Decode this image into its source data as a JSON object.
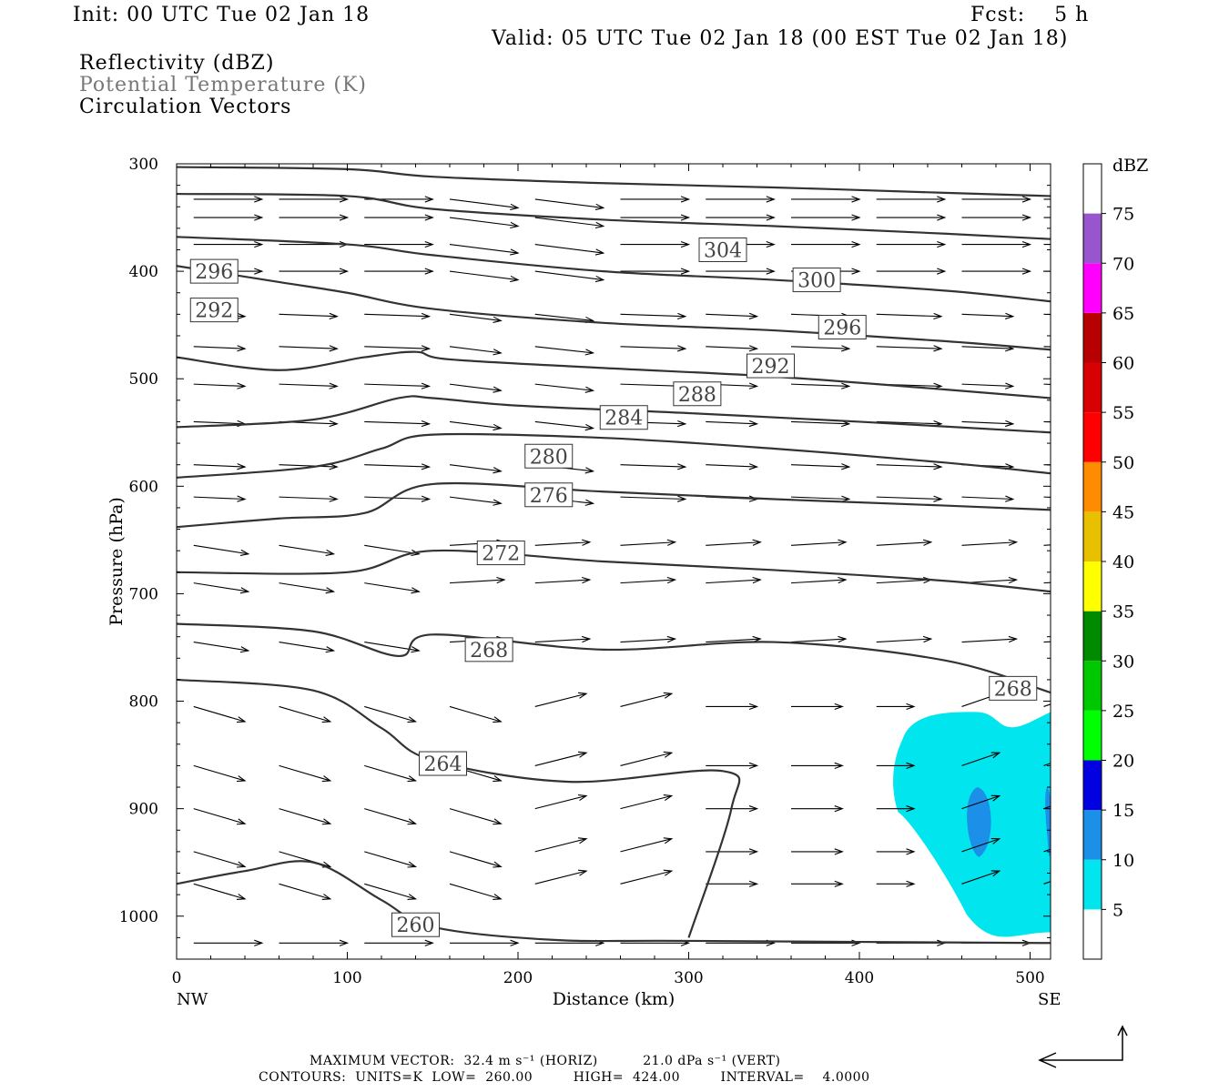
{
  "header": {
    "init": "Init: 00 UTC Tue 02 Jan 18",
    "fcst": "Fcst:    5 h",
    "valid": "Valid: 05 UTC Tue 02 Jan 18 (00 EST Tue 02 Jan 18)",
    "fields": [
      "Reflectivity (dBZ)",
      "Potential Temperature (K)",
      "Circulation Vectors"
    ]
  },
  "footer": {
    "line1": "MAXIMUM VECTOR:  32.4 m s⁻¹ (HORIZ)          21.0 dPa s⁻¹ (VERT)",
    "line2": "CONTOURS:  UNITS=K  LOW=  260.00         HIGH=  424.00         INTERVAL=    4.0000"
  },
  "colors": {
    "contour": "#333333",
    "refl_5": "#00e5ee",
    "refl_10": "#1c8fe8",
    "frame": "#000000"
  },
  "chart_data": {
    "type": "cross-section",
    "xlabel": "Distance (km)",
    "ylabel": "Pressure (hPa)",
    "x_endpoints": [
      "NW",
      "SE"
    ],
    "xlim": [
      0,
      512
    ],
    "ylim": [
      300,
      1040
    ],
    "y_scale": "linear-inverted",
    "x_ticks": [
      "0",
      "100",
      "200",
      "300",
      "400",
      "500"
    ],
    "y_ticks": [
      "300",
      "400",
      "500",
      "600",
      "700",
      "800",
      "900",
      "1000"
    ],
    "colorbar": {
      "label": "dBZ",
      "levels": [
        "5",
        "10",
        "15",
        "20",
        "25",
        "30",
        "35",
        "40",
        "45",
        "50",
        "55",
        "60",
        "65",
        "70",
        "75"
      ],
      "colors": [
        "#ffffff",
        "#00e5ee",
        "#1c8fe8",
        "#0000e0",
        "#00ff00",
        "#00c800",
        "#008a00",
        "#ffff00",
        "#e8c000",
        "#ff8c00",
        "#ff0000",
        "#d80000",
        "#b80000",
        "#ff00ff",
        "#9955cc"
      ]
    },
    "contour_labels": [
      "304",
      "300",
      "296",
      "296",
      "292",
      "292",
      "288",
      "284",
      "280",
      "276",
      "272",
      "268",
      "268",
      "264",
      "260"
    ],
    "theta_contours": [
      {
        "label": "304",
        "points": [
          [
            0,
            303
          ],
          [
            100,
            305
          ],
          [
            150,
            312
          ],
          [
            250,
            318
          ],
          [
            350,
            322
          ],
          [
            450,
            327
          ],
          [
            512,
            330
          ]
        ]
      },
      {
        "label": "300",
        "points": [
          [
            0,
            328
          ],
          [
            100,
            330
          ],
          [
            150,
            342
          ],
          [
            250,
            352
          ],
          [
            350,
            358
          ],
          [
            450,
            365
          ],
          [
            512,
            370
          ]
        ]
      },
      {
        "label": "296",
        "points": [
          [
            0,
            368
          ],
          [
            100,
            375
          ],
          [
            150,
            385
          ],
          [
            250,
            400
          ],
          [
            350,
            408
          ],
          [
            450,
            418
          ],
          [
            512,
            428
          ]
        ]
      },
      {
        "label": "292",
        "points": [
          [
            0,
            395
          ],
          [
            60,
            410
          ],
          [
            100,
            420
          ],
          [
            150,
            435
          ],
          [
            250,
            448
          ],
          [
            350,
            455
          ],
          [
            450,
            465
          ],
          [
            512,
            473
          ]
        ]
      },
      {
        "label": "288",
        "points": [
          [
            0,
            480
          ],
          [
            60,
            492
          ],
          [
            110,
            480
          ],
          [
            140,
            475
          ],
          [
            160,
            482
          ],
          [
            250,
            490
          ],
          [
            350,
            498
          ],
          [
            450,
            510
          ],
          [
            512,
            518
          ]
        ]
      },
      {
        "label": "284",
        "points": [
          [
            0,
            545
          ],
          [
            80,
            538
          ],
          [
            130,
            518
          ],
          [
            150,
            518
          ],
          [
            200,
            525
          ],
          [
            300,
            532
          ],
          [
            400,
            540
          ],
          [
            512,
            550
          ]
        ]
      },
      {
        "label": "280",
        "points": [
          [
            0,
            592
          ],
          [
            80,
            582
          ],
          [
            120,
            565
          ],
          [
            150,
            552
          ],
          [
            250,
            555
          ],
          [
            350,
            565
          ],
          [
            450,
            578
          ],
          [
            512,
            588
          ]
        ]
      },
      {
        "label": "276",
        "points": [
          [
            0,
            638
          ],
          [
            60,
            630
          ],
          [
            110,
            625
          ],
          [
            150,
            598
          ],
          [
            250,
            605
          ],
          [
            350,
            612
          ],
          [
            450,
            618
          ],
          [
            512,
            622
          ]
        ]
      },
      {
        "label": "272",
        "points": [
          [
            0,
            680
          ],
          [
            100,
            680
          ],
          [
            150,
            660
          ],
          [
            250,
            670
          ],
          [
            350,
            678
          ],
          [
            450,
            688
          ],
          [
            512,
            698
          ]
        ]
      },
      {
        "label": "268",
        "points": [
          [
            0,
            728
          ],
          [
            80,
            735
          ],
          [
            130,
            758
          ],
          [
            150,
            738
          ],
          [
            250,
            752
          ],
          [
            350,
            745
          ],
          [
            450,
            762
          ],
          [
            512,
            792
          ]
        ]
      },
      {
        "label": "264",
        "points": [
          [
            0,
            780
          ],
          [
            80,
            790
          ],
          [
            120,
            825
          ],
          [
            150,
            855
          ],
          [
            230,
            875
          ],
          [
            320,
            865
          ],
          [
            325,
            900
          ],
          [
            300,
            1020
          ]
        ]
      },
      {
        "label": "260",
        "points": [
          [
            0,
            970
          ],
          [
            40,
            958
          ],
          [
            80,
            950
          ],
          [
            120,
            985
          ],
          [
            150,
            1010
          ],
          [
            220,
            1022
          ],
          [
            300,
            1023
          ],
          [
            512,
            1025
          ]
        ]
      }
    ],
    "reflectivity_regions": [
      {
        "dbz_min": 5,
        "dbz_max": 10,
        "x_range": [
          420,
          512
        ],
        "p_range": [
          810,
          1015
        ]
      },
      {
        "dbz_min": 10,
        "dbz_max": 15,
        "x_range": [
          460,
          478
        ],
        "p_range": [
          880,
          945
        ]
      },
      {
        "dbz_min": 10,
        "dbz_max": 15,
        "x_range": [
          508,
          512
        ],
        "p_range": [
          880,
          945
        ]
      }
    ],
    "max_vector": {
      "horizontal": "32.4 m s⁻¹",
      "vertical": "21.0 dPa s⁻¹"
    },
    "contours": {
      "units": "K",
      "low": 260.0,
      "high": 424.0,
      "interval": 4.0
    }
  }
}
